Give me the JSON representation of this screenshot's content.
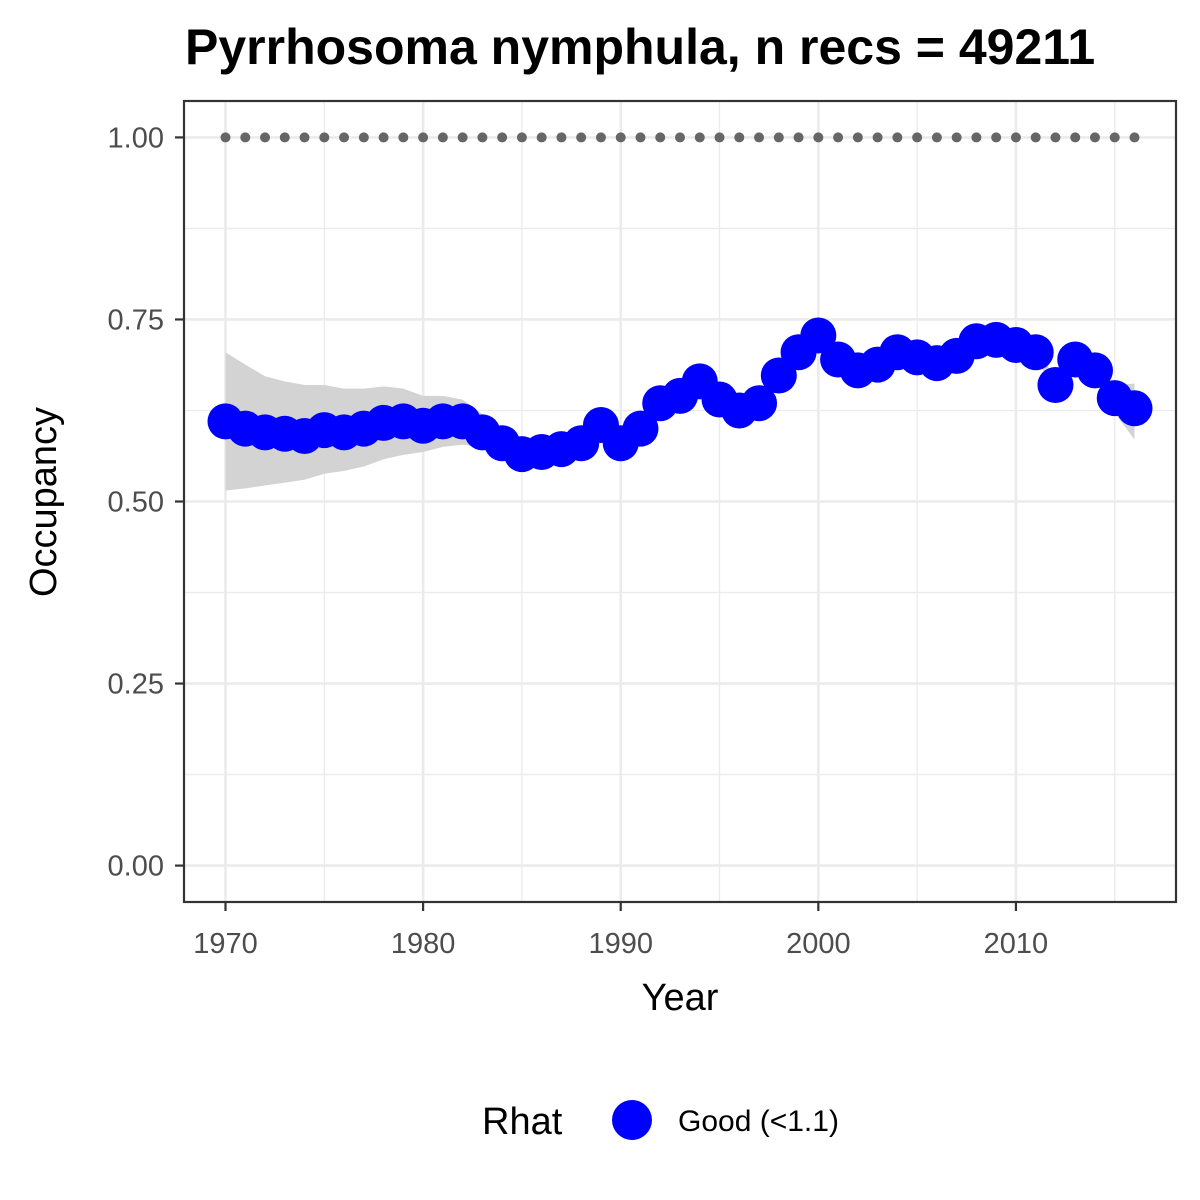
{
  "chart_data": {
    "type": "line",
    "title": "Pyrrhosoma nymphula, n recs = 49211",
    "xlabel": "Year",
    "ylabel": "Occupancy",
    "xlim": [
      1967.9,
      2018.1
    ],
    "ylim": [
      -0.05,
      1.05
    ],
    "x_ticks": [
      1970,
      1980,
      1990,
      2000,
      2010
    ],
    "y_ticks": [
      0.0,
      0.25,
      0.5,
      0.75,
      1.0
    ],
    "x_tick_labels": [
      "1970",
      "1980",
      "1990",
      "2000",
      "2010"
    ],
    "y_tick_labels": [
      "0.00",
      "0.25",
      "0.50",
      "0.75",
      "1.00"
    ],
    "grid": true,
    "legend": {
      "title": "Rhat",
      "position": "bottom",
      "entries": [
        {
          "label": "Good (<1.1)",
          "color": "#0000ff"
        }
      ]
    },
    "colors": {
      "points": "#0000ff",
      "ribbon": "#d3d3d3",
      "reference_dots": "#666666",
      "grid": "#ebebeb",
      "panel_border": "#333333"
    },
    "x": [
      1970,
      1971,
      1972,
      1973,
      1974,
      1975,
      1976,
      1977,
      1978,
      1979,
      1980,
      1981,
      1982,
      1983,
      1984,
      1985,
      1986,
      1987,
      1988,
      1989,
      1990,
      1991,
      1992,
      1993,
      1994,
      1995,
      1996,
      1997,
      1998,
      1999,
      2000,
      2001,
      2002,
      2003,
      2004,
      2005,
      2006,
      2007,
      2008,
      2009,
      2010,
      2011,
      2012,
      2013,
      2014,
      2015,
      2016
    ],
    "series": [
      {
        "values": [
          0.61,
          0.6,
          0.595,
          0.593,
          0.59,
          0.598,
          0.595,
          0.6,
          0.608,
          0.61,
          0.604,
          0.61,
          0.61,
          0.595,
          0.58,
          0.565,
          0.568,
          0.572,
          0.58,
          0.605,
          0.58,
          0.6,
          0.635,
          0.645,
          0.665,
          0.64,
          0.625,
          0.635,
          0.673,
          0.705,
          0.728,
          0.695,
          0.68,
          0.688,
          0.705,
          0.698,
          0.69,
          0.7,
          0.72,
          0.722,
          0.715,
          0.705,
          0.66,
          0.695,
          0.68,
          0.642,
          0.628
        ],
        "lower": [
          0.515,
          0.518,
          0.522,
          0.526,
          0.53,
          0.538,
          0.542,
          0.548,
          0.558,
          0.564,
          0.568,
          0.575,
          0.578,
          0.575,
          0.568,
          0.558,
          0.562,
          0.566,
          0.574,
          0.598,
          0.574,
          0.594,
          0.628,
          0.638,
          0.658,
          0.632,
          0.618,
          0.628,
          0.665,
          0.697,
          0.72,
          0.687,
          0.672,
          0.68,
          0.697,
          0.69,
          0.682,
          0.692,
          0.712,
          0.714,
          0.707,
          0.697,
          0.652,
          0.687,
          0.668,
          0.622,
          0.585
        ],
        "upper": [
          0.705,
          0.688,
          0.672,
          0.665,
          0.66,
          0.66,
          0.655,
          0.655,
          0.658,
          0.655,
          0.645,
          0.645,
          0.64,
          0.62,
          0.595,
          0.574,
          0.576,
          0.58,
          0.588,
          0.612,
          0.588,
          0.608,
          0.642,
          0.652,
          0.672,
          0.648,
          0.632,
          0.642,
          0.68,
          0.713,
          0.736,
          0.703,
          0.688,
          0.696,
          0.713,
          0.706,
          0.698,
          0.708,
          0.728,
          0.73,
          0.723,
          0.713,
          0.668,
          0.703,
          0.69,
          0.66,
          0.662
        ]
      }
    ],
    "reference_line": {
      "y": 1.0,
      "x": [
        1970,
        1971,
        1972,
        1973,
        1974,
        1975,
        1976,
        1977,
        1978,
        1979,
        1980,
        1981,
        1982,
        1983,
        1984,
        1985,
        1986,
        1987,
        1988,
        1989,
        1990,
        1991,
        1992,
        1993,
        1994,
        1995,
        1996,
        1997,
        1998,
        1999,
        2000,
        2001,
        2002,
        2003,
        2004,
        2005,
        2006,
        2007,
        2008,
        2009,
        2010,
        2011,
        2012,
        2013,
        2014,
        2015,
        2016
      ]
    }
  }
}
